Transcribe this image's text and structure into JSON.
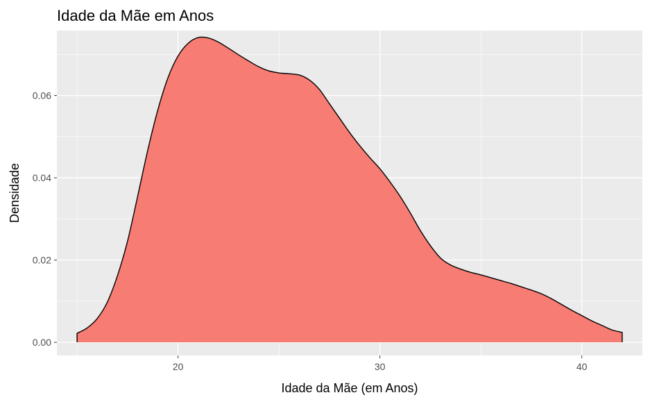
{
  "chart_data": {
    "type": "area",
    "title": "Idade da Mãe em Anos",
    "xlabel": "Idade da Mãe (em Anos)",
    "ylabel": "Densidade",
    "xlim": [
      14,
      43
    ],
    "ylim": [
      -0.0032,
      0.0758
    ],
    "x_ticks": [
      20,
      30,
      40
    ],
    "x_tick_labels": [
      "20",
      "30",
      "40"
    ],
    "x_minor_ticks": [
      15,
      25,
      35
    ],
    "y_ticks": [
      0,
      0.02,
      0.04,
      0.06
    ],
    "y_tick_labels": [
      "0.00",
      "0.02",
      "0.04",
      "0.06"
    ],
    "y_minor_ticks": [
      0.01,
      0.03,
      0.05,
      0.07
    ],
    "grid": true,
    "legend": "none",
    "fill_color": "#F8766D",
    "fill_opacity": 0.95,
    "line_color": "#000000",
    "panel_color": "#EBEBEB",
    "x": [
      15.0,
      15.5,
      16.0,
      16.5,
      17.0,
      17.5,
      18.0,
      18.5,
      19.0,
      19.5,
      20.0,
      20.5,
      21.0,
      21.5,
      22.0,
      22.5,
      23.0,
      23.5,
      24.0,
      24.5,
      25.0,
      25.5,
      26.0,
      26.5,
      27.0,
      27.5,
      28.0,
      28.5,
      29.0,
      29.5,
      30.0,
      30.5,
      31.0,
      31.5,
      32.0,
      32.5,
      33.0,
      33.5,
      34.0,
      34.5,
      35.0,
      35.5,
      36.0,
      36.5,
      37.0,
      37.5,
      38.0,
      38.5,
      39.0,
      39.5,
      40.0,
      40.5,
      41.0,
      41.5,
      42.0
    ],
    "y": [
      0.0022,
      0.0035,
      0.0058,
      0.0098,
      0.0162,
      0.0246,
      0.0355,
      0.0467,
      0.0565,
      0.0643,
      0.0696,
      0.0727,
      0.0741,
      0.074,
      0.073,
      0.0715,
      0.0699,
      0.0684,
      0.067,
      0.066,
      0.0655,
      0.0653,
      0.065,
      0.0638,
      0.0615,
      0.058,
      0.0545,
      0.051,
      0.0478,
      0.0449,
      0.0422,
      0.039,
      0.0355,
      0.0315,
      0.0272,
      0.0235,
      0.0205,
      0.0188,
      0.0178,
      0.017,
      0.0164,
      0.0157,
      0.015,
      0.0143,
      0.0135,
      0.0127,
      0.0118,
      0.0106,
      0.0092,
      0.0078,
      0.0065,
      0.0052,
      0.0041,
      0.003,
      0.0024
    ]
  }
}
